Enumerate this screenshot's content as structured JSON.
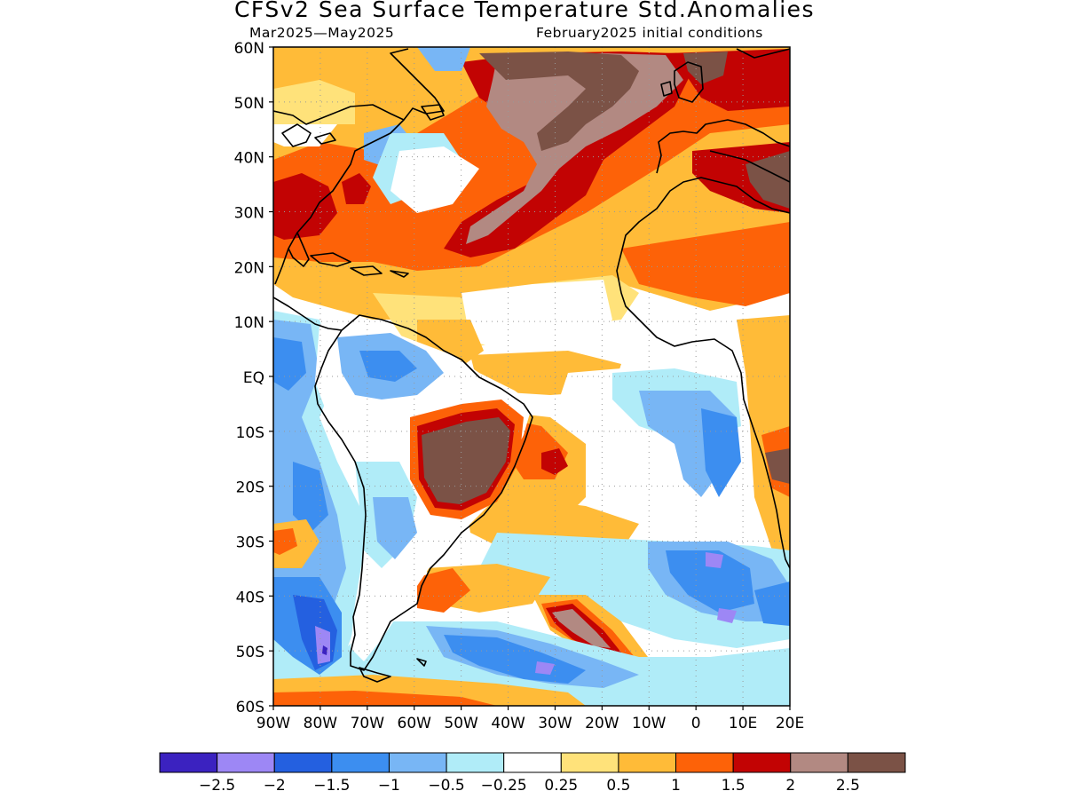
{
  "title": "CFSv2 Sea Surface Temperature Std.Anomalies",
  "subtitle_left": "Mar2025—May2025",
  "subtitle_right": "February2025 initial conditions",
  "map": {
    "lat_labels": [
      "60N",
      "50N",
      "40N",
      "30N",
      "20N",
      "10N",
      "EQ",
      "10S",
      "20S",
      "30S",
      "40S",
      "50S",
      "60S"
    ],
    "lon_labels": [
      "90W",
      "80W",
      "70W",
      "60W",
      "50W",
      "40W",
      "30W",
      "20W",
      "10W",
      "0",
      "10E",
      "20E"
    ],
    "lat_range": [
      -60,
      60
    ],
    "lon_range": [
      -90,
      20
    ],
    "grid": "dotted"
  },
  "colorbar": {
    "colors": [
      "#3b22c0",
      "#9d87f5",
      "#2460e0",
      "#3c8ef0",
      "#78b6f5",
      "#b0ecf8",
      "#ffffff",
      "#ffe27a",
      "#ffbb38",
      "#fd6208",
      "#c20303",
      "#b28982",
      "#7b5246"
    ],
    "labels": [
      "−2.5",
      "−2",
      "−1.5",
      "−1",
      "−0.5",
      "−0.25",
      "0.25",
      "0.5",
      "1",
      "1.5",
      "2",
      "2.5"
    ]
  }
}
